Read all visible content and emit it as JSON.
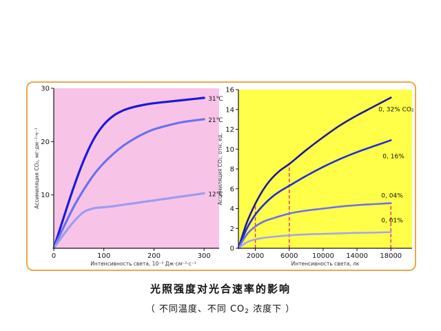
{
  "caption": {
    "title": "光照强度对光合速率的影响",
    "subtitle_before": "（ 不同温度、不同 CO",
    "subtitle_sub": "2",
    "subtitle_after": " 浓度下 ）"
  },
  "colors": {
    "frame_border": "#f0a64a",
    "left_bg": "#f7c4e8",
    "right_bg": "#ffff4a"
  },
  "chart_data": [
    {
      "type": "line",
      "background": "#f7c4e8",
      "xlabel": "Интенсивность света, 10⁻³ Дж·см⁻²·с⁻¹",
      "ylabel": "Ассимиляция CO₂, мг·дм⁻²·ч⁻¹",
      "xlim": [
        0,
        330
      ],
      "ylim": [
        0,
        30
      ],
      "xticks": [
        0,
        100,
        200,
        300
      ],
      "yticks": [
        10,
        20,
        30
      ],
      "grid": false,
      "series": [
        {
          "name": "31℃",
          "color": "#1a1ad6",
          "x": [
            0,
            20,
            40,
            60,
            80,
            100,
            120,
            140,
            160,
            180,
            200,
            230,
            260,
            300
          ],
          "y": [
            0,
            5.8,
            11.5,
            16.5,
            20.5,
            23.2,
            24.9,
            25.9,
            26.5,
            26.9,
            27.2,
            27.5,
            27.8,
            28.2
          ]
        },
        {
          "name": "21℃",
          "color": "#6a72ee",
          "x": [
            0,
            20,
            40,
            60,
            80,
            100,
            120,
            140,
            160,
            180,
            200,
            230,
            260,
            300
          ],
          "y": [
            0,
            4.0,
            7.8,
            11.0,
            13.8,
            16.0,
            17.8,
            19.3,
            20.5,
            21.5,
            22.3,
            23.1,
            23.7,
            24.2
          ]
        },
        {
          "name": "12℃",
          "color": "#9b9cf0",
          "x": [
            0,
            20,
            40,
            60,
            80,
            100,
            120,
            150,
            180,
            210,
            240,
            270,
            300
          ],
          "y": [
            0,
            2.6,
            5.0,
            6.8,
            7.5,
            7.7,
            7.9,
            8.3,
            8.7,
            9.1,
            9.5,
            9.9,
            10.3
          ]
        }
      ]
    },
    {
      "type": "line",
      "background": "#ffff4a",
      "xlabel": "Интенсивность света, лк",
      "ylabel": "Ассимиляция CO₂, отн. ед.",
      "xlim": [
        0,
        20500
      ],
      "ylim": [
        0,
        16
      ],
      "xticks": [
        2000,
        6000,
        10000,
        14000,
        18000
      ],
      "yticks": [
        0,
        2,
        4,
        6,
        8,
        10,
        12,
        14,
        16
      ],
      "grid": false,
      "guides_x": [
        2000,
        6000,
        18000
      ],
      "series": [
        {
          "name": "0, 32% CO₂",
          "color": "#18189a",
          "x": [
            0,
            1000,
            2000,
            3000,
            4000,
            5000,
            6000,
            8000,
            10000,
            12000,
            14000,
            16000,
            18000
          ],
          "y": [
            0,
            2.6,
            4.5,
            6.0,
            7.1,
            7.9,
            8.5,
            9.9,
            11.2,
            12.4,
            13.4,
            14.3,
            15.2
          ]
        },
        {
          "name": "0, 16%",
          "color": "#1f2fd6",
          "x": [
            0,
            1000,
            2000,
            3000,
            4000,
            5000,
            6000,
            8000,
            10000,
            12000,
            14000,
            16000,
            18000
          ],
          "y": [
            0,
            2.0,
            3.4,
            4.4,
            5.2,
            5.8,
            6.3,
            7.3,
            8.2,
            9.0,
            9.7,
            10.3,
            10.9
          ]
        },
        {
          "name": "0, 04%",
          "color": "#6d6ff0",
          "x": [
            0,
            1000,
            2000,
            3000,
            4000,
            6000,
            8000,
            10000,
            12000,
            14000,
            16000,
            18000
          ],
          "y": [
            0,
            1.4,
            2.2,
            2.7,
            3.0,
            3.5,
            3.8,
            4.0,
            4.2,
            4.35,
            4.45,
            4.55
          ]
        },
        {
          "name": "0, 01%",
          "color": "#a3a4f2",
          "x": [
            0,
            1000,
            2000,
            3000,
            4000,
            6000,
            8000,
            10000,
            12000,
            14000,
            16000,
            18000
          ],
          "y": [
            0,
            0.6,
            0.9,
            1.05,
            1.15,
            1.3,
            1.4,
            1.45,
            1.5,
            1.55,
            1.58,
            1.62
          ]
        }
      ]
    }
  ]
}
